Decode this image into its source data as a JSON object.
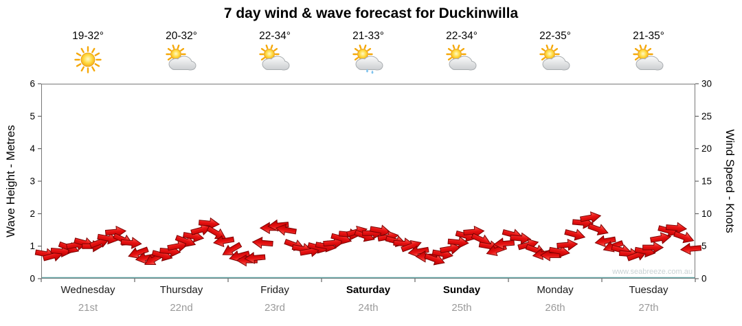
{
  "title": "7 day wind & wave forecast for Duckinwilla",
  "watermark": "www.seabreeze.com.au",
  "left_axis": {
    "label": "Wave Height - Metres",
    "ticks": [
      0,
      1,
      2,
      3,
      4,
      5,
      6
    ]
  },
  "right_axis": {
    "label": "Wind Speed - Knots",
    "ticks": [
      0,
      5,
      10,
      15,
      20,
      25,
      30
    ]
  },
  "days": [
    {
      "name": "Wednesday",
      "date": "21st",
      "temp": "19-32°",
      "icon": "sunny",
      "weekend": false
    },
    {
      "name": "Thursday",
      "date": "22nd",
      "temp": "20-32°",
      "icon": "partly-cloudy",
      "weekend": false
    },
    {
      "name": "Friday",
      "date": "23rd",
      "temp": "22-34°",
      "icon": "partly-cloudy",
      "weekend": false
    },
    {
      "name": "Saturday",
      "date": "24th",
      "temp": "21-33°",
      "icon": "shower",
      "weekend": true
    },
    {
      "name": "Sunday",
      "date": "25th",
      "temp": "22-34°",
      "icon": "partly-cloudy",
      "weekend": true
    },
    {
      "name": "Monday",
      "date": "26th",
      "temp": "22-35°",
      "icon": "partly-cloudy",
      "weekend": false
    },
    {
      "name": "Tuesday",
      "date": "27th",
      "temp": "21-35°",
      "icon": "partly-cloudy",
      "weekend": false
    }
  ],
  "colors": {
    "arrow": "#e61212",
    "arrow_outline": "#7d0000",
    "baseline": "#4d9999",
    "axis": "#777777",
    "date_text": "#9a9a9a"
  },
  "chart_data": {
    "type": "scatter",
    "subtype": "wind-arrows",
    "title": "7 day wind & wave forecast for Duckinwilla",
    "x_categories": [
      "Wednesday 21st",
      "Thursday 22nd",
      "Friday 23rd",
      "Saturday 24th",
      "Sunday 25th",
      "Monday 26th",
      "Tuesday 27th"
    ],
    "points_per_day": 12,
    "y_left": {
      "label": "Wave Height - Metres",
      "range": [
        0,
        6
      ]
    },
    "y_right": {
      "label": "Wind Speed - Knots",
      "range": [
        0,
        30
      ]
    },
    "grid": false,
    "legend": "none",
    "series": [
      {
        "day": "Wednesday",
        "speeds_kn": [
          3.8,
          3.5,
          4.2,
          4.8,
          5.2,
          5.5,
          5.0,
          5.6,
          6.2,
          7.2,
          6.0,
          5.5
        ],
        "dirs_deg": [
          10,
          -15,
          5,
          20,
          -10,
          15,
          0,
          -20,
          10,
          -5,
          25,
          5
        ]
      },
      {
        "day": "Thursday",
        "speeds_kn": [
          4.0,
          3.2,
          3.0,
          3.6,
          4.2,
          5.0,
          5.8,
          6.5,
          7.5,
          8.5,
          7.0,
          5.8
        ],
        "dirs_deg": [
          160,
          170,
          150,
          15,
          5,
          -10,
          20,
          10,
          -15,
          5,
          30,
          170
        ]
      },
      {
        "day": "Friday",
        "speeds_kn": [
          4.5,
          3.5,
          2.8,
          3.2,
          5.5,
          7.8,
          8.2,
          7.5,
          5.2,
          4.6,
          4.2,
          4.8
        ],
        "dirs_deg": [
          150,
          165,
          180,
          175,
          185,
          180,
          175,
          190,
          20,
          10,
          -10,
          15
        ]
      },
      {
        "day": "Saturday",
        "speeds_kn": [
          5.0,
          5.5,
          6.2,
          6.8,
          7.2,
          6.6,
          7.0,
          7.4,
          6.4,
          5.8,
          5.4,
          5.0
        ],
        "dirs_deg": [
          10,
          -5,
          15,
          5,
          -15,
          20,
          0,
          10,
          -10,
          15,
          5,
          -20
        ]
      },
      {
        "day": "Sunday",
        "speeds_kn": [
          4.2,
          3.4,
          3.0,
          3.8,
          4.6,
          5.6,
          6.6,
          7.2,
          6.0,
          5.0,
          4.4,
          5.4
        ],
        "dirs_deg": [
          170,
          180,
          20,
          10,
          -10,
          5,
          15,
          -5,
          25,
          10,
          160,
          175
        ]
      },
      {
        "day": "Monday",
        "speeds_kn": [
          6.8,
          6.2,
          5.2,
          4.4,
          3.8,
          3.6,
          4.2,
          5.2,
          6.8,
          8.6,
          9.4,
          7.6
        ],
        "dirs_deg": [
          15,
          5,
          -15,
          20,
          170,
          180,
          10,
          -5,
          15,
          5,
          -10,
          20
        ]
      },
      {
        "day": "Tuesday",
        "speeds_kn": [
          5.8,
          5.0,
          4.4,
          3.8,
          3.6,
          4.2,
          4.8,
          6.2,
          7.4,
          7.8,
          6.4,
          4.6
        ],
        "dirs_deg": [
          170,
          160,
          15,
          5,
          -20,
          10,
          0,
          -10,
          15,
          5,
          20,
          175
        ]
      }
    ]
  }
}
